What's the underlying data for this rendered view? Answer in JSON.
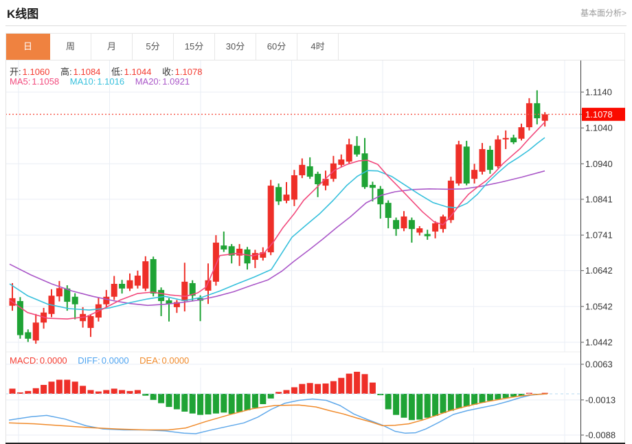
{
  "header": {
    "title": "K线图",
    "link": "基本面分析>"
  },
  "tabs": {
    "items": [
      "日",
      "周",
      "月",
      "5分",
      "15分",
      "30分",
      "60分",
      "4时"
    ],
    "selected_index": 0
  },
  "readout": {
    "ohlc": [
      {
        "label": "开:",
        "value": "1.1060"
      },
      {
        "label": "高:",
        "value": "1.1084"
      },
      {
        "label": "低:",
        "value": "1.1044"
      },
      {
        "label": "收:",
        "value": "1.1078"
      }
    ],
    "ma": [
      {
        "label": "MA5:",
        "value": "1.1058"
      },
      {
        "label": "MA10:",
        "value": "1.1016"
      },
      {
        "label": "MA20:",
        "value": "1.0921"
      }
    ],
    "macd": [
      {
        "label": "MACD:",
        "value": "0.0000"
      },
      {
        "label": "DIFF:",
        "value": "0.0000"
      },
      {
        "label": "DEA:",
        "value": "0.0000"
      }
    ]
  },
  "colors": {
    "up_red": "#ee2f28",
    "down_green": "#1fa335",
    "ma5": "#f2497c",
    "ma10": "#36c0dc",
    "ma20": "#aa57c8",
    "diff_blue": "#5fa8ea",
    "dea_orange": "#f08a2a",
    "ohlc_label": "#333333",
    "ohlc_value": "#f43b30",
    "marker_bg": "#fa0b00",
    "marker_text": "#ffffff",
    "price_dotted": "#f65c4e",
    "zero_dashed": "#b5daf0",
    "grid": "#e9eef5",
    "axis_line": "#3a3a3a",
    "tick": "#555555",
    "axis_text": "#333333",
    "tab_selected_bg": "#ef8240",
    "bottom_border": "#222222"
  },
  "chart_data": {
    "type": "candlestick+macd",
    "title": "K线图",
    "legend": [
      "MA5",
      "MA10",
      "MA20",
      "MACD",
      "DIFF",
      "DEA"
    ],
    "main": {
      "ylim": [
        1.0442,
        1.114
      ],
      "y_ticks": [
        "1.1140",
        "1.1040",
        "1.0940",
        "1.0841",
        "1.0741",
        "1.0642",
        "1.0542",
        "1.0442"
      ],
      "current_price": "1.1078",
      "current_price_value": 1.1078,
      "grid": true,
      "candles_ohlc": [
        [
          1.0544,
          1.0607,
          1.053,
          1.0565
        ],
        [
          1.0557,
          1.0568,
          1.0452,
          1.0462
        ],
        [
          1.047,
          1.0478,
          1.0443,
          1.0452
        ],
        [
          1.0447,
          1.0521,
          1.0438,
          1.0497
        ],
        [
          1.0497,
          1.0538,
          1.048,
          1.0525
        ],
        [
          1.0521,
          1.059,
          1.0512,
          1.0572
        ],
        [
          1.057,
          1.0613,
          1.0556,
          1.0593
        ],
        [
          1.0592,
          1.0601,
          1.053,
          1.0555
        ],
        [
          1.0569,
          1.0579,
          1.0506,
          1.0548
        ],
        [
          1.0501,
          1.054,
          1.0483,
          1.0521
        ],
        [
          1.0482,
          1.0519,
          1.0457,
          1.0515
        ],
        [
          1.0511,
          1.0566,
          1.05,
          1.0548
        ],
        [
          1.0548,
          1.0588,
          1.0536,
          1.0569
        ],
        [
          1.0569,
          1.0627,
          1.056,
          1.0605
        ],
        [
          1.0605,
          1.0616,
          1.0578,
          1.0592
        ],
        [
          1.0592,
          1.0634,
          1.0585,
          1.0615
        ],
        [
          1.06,
          1.0642,
          1.0592,
          1.0628
        ],
        [
          1.0592,
          1.0682,
          1.0585,
          1.0668
        ],
        [
          1.0674,
          1.0681,
          1.057,
          1.0578
        ],
        [
          1.0588,
          1.0595,
          1.0515,
          1.0557
        ],
        [
          1.0559,
          1.0565,
          1.05,
          1.0549
        ],
        [
          1.054,
          1.056,
          1.0524,
          1.0554
        ],
        [
          1.0557,
          1.0664,
          1.0528,
          1.0611
        ],
        [
          1.0607,
          1.0615,
          1.0556,
          1.0572
        ],
        [
          1.0565,
          1.0573,
          1.0501,
          1.0558
        ],
        [
          1.0586,
          1.0662,
          1.0549,
          1.0615
        ],
        [
          1.0611,
          1.0741,
          1.06,
          1.072
        ],
        [
          1.0712,
          1.0751,
          1.0694,
          1.0701
        ],
        [
          1.071,
          1.0716,
          1.0662,
          1.0684
        ],
        [
          1.0684,
          1.0716,
          1.0655,
          1.0703
        ],
        [
          1.0701,
          1.0708,
          1.0645,
          1.0662
        ],
        [
          1.0672,
          1.07,
          1.0649,
          1.0691
        ],
        [
          1.0678,
          1.0707,
          1.067,
          1.0693
        ],
        [
          1.0693,
          1.0895,
          1.0685,
          1.0879
        ],
        [
          1.0875,
          1.0885,
          1.0825,
          1.0835
        ],
        [
          1.0837,
          1.0889,
          1.083,
          1.0854
        ],
        [
          1.084,
          1.0923,
          1.0822,
          1.0908
        ],
        [
          1.0908,
          1.0955,
          1.09,
          1.0937
        ],
        [
          1.0933,
          1.0958,
          1.0898,
          1.0904
        ],
        [
          1.0912,
          1.0918,
          1.0847,
          1.0883
        ],
        [
          1.0879,
          1.0921,
          1.0866,
          1.0898
        ],
        [
          1.0898,
          1.0962,
          1.089,
          1.0941
        ],
        [
          1.0937,
          1.0966,
          1.093,
          1.0952
        ],
        [
          1.0946,
          1.101,
          1.094,
          1.0994
        ],
        [
          1.099,
          1.1017,
          1.096,
          1.0966
        ],
        [
          1.0969,
          1.1012,
          1.087,
          1.0875
        ],
        [
          1.0881,
          1.089,
          1.0835,
          1.0873
        ],
        [
          1.087,
          1.0878,
          1.0787,
          1.0827
        ],
        [
          1.0831,
          1.0838,
          1.076,
          1.0789
        ],
        [
          1.0783,
          1.079,
          1.0739,
          1.0758
        ],
        [
          1.076,
          1.0808,
          1.0752,
          1.0793
        ],
        [
          1.0783,
          1.079,
          1.072,
          1.0758
        ],
        [
          1.0748,
          1.0766,
          1.074,
          1.076
        ],
        [
          1.0744,
          1.0756,
          1.0728,
          1.0738
        ],
        [
          1.0751,
          1.078,
          1.0732,
          1.0774
        ],
        [
          1.0758,
          1.0798,
          1.0748,
          1.0793
        ],
        [
          1.0783,
          1.0904,
          1.0775,
          1.0893
        ],
        [
          1.0885,
          1.1004,
          1.0879,
          1.0994
        ],
        [
          1.0988,
          1.1004,
          1.088,
          1.0885
        ],
        [
          1.0898,
          1.094,
          1.0885,
          1.0923
        ],
        [
          1.0918,
          1.0998,
          1.091,
          1.0981
        ],
        [
          1.0979,
          1.099,
          1.0912,
          1.0923
        ],
        [
          1.0933,
          1.1019,
          1.0928,
          1.1008
        ],
        [
          1.1008,
          1.1033,
          1.0981,
          1.1012
        ],
        [
          1.1013,
          1.1021,
          1.0995,
          1.1
        ],
        [
          1.101,
          1.1052,
          1.1005,
          1.1042
        ],
        [
          1.1042,
          1.1123,
          1.1033,
          1.1109
        ],
        [
          1.1109,
          1.1145,
          1.105,
          1.1067
        ],
        [
          1.106,
          1.1084,
          1.1044,
          1.1078
        ]
      ],
      "ma5_line": [
        [
          14,
          1.056
        ],
        [
          40,
          1.0525
        ],
        [
          70,
          1.0509
        ],
        [
          98,
          1.0507
        ],
        [
          125,
          1.0513
        ],
        [
          150,
          1.0535
        ],
        [
          175,
          1.056
        ],
        [
          200,
          1.0578
        ],
        [
          222,
          1.0582
        ],
        [
          248,
          1.0574
        ],
        [
          270,
          1.057
        ],
        [
          288,
          1.058
        ],
        [
          300,
          1.0596
        ],
        [
          312,
          1.0648
        ],
        [
          320,
          1.0684
        ],
        [
          345,
          1.069
        ],
        [
          368,
          1.0683
        ],
        [
          385,
          1.0692
        ],
        [
          398,
          1.0722
        ],
        [
          412,
          1.0762
        ],
        [
          428,
          1.08
        ],
        [
          442,
          1.0838
        ],
        [
          458,
          1.0868
        ],
        [
          472,
          1.0895
        ],
        [
          487,
          1.0922
        ],
        [
          505,
          1.0938
        ],
        [
          522,
          1.0948
        ],
        [
          535,
          1.095
        ],
        [
          550,
          1.0938
        ],
        [
          565,
          1.0905
        ],
        [
          582,
          1.0872
        ],
        [
          598,
          1.084
        ],
        [
          615,
          1.0806
        ],
        [
          632,
          1.0778
        ],
        [
          645,
          1.077
        ],
        [
          658,
          1.0798
        ],
        [
          670,
          1.0828
        ],
        [
          682,
          1.0855
        ],
        [
          695,
          1.0875
        ],
        [
          708,
          1.0893
        ],
        [
          720,
          1.0915
        ],
        [
          732,
          1.094
        ],
        [
          745,
          1.0962
        ],
        [
          757,
          1.0982
        ],
        [
          770,
          1.101
        ],
        [
          781,
          1.1032
        ],
        [
          793,
          1.1056
        ]
      ],
      "ma10_line": [
        [
          14,
          1.0605
        ],
        [
          40,
          1.0572
        ],
        [
          70,
          1.0548
        ],
        [
          100,
          1.0536
        ],
        [
          130,
          1.0532
        ],
        [
          160,
          1.0538
        ],
        [
          190,
          1.0553
        ],
        [
          215,
          1.0563
        ],
        [
          240,
          1.057
        ],
        [
          268,
          1.0558
        ],
        [
          295,
          1.0568
        ],
        [
          320,
          1.0585
        ],
        [
          345,
          1.0605
        ],
        [
          370,
          1.0624
        ],
        [
          395,
          1.0645
        ],
        [
          410,
          1.069
        ],
        [
          425,
          1.0735
        ],
        [
          445,
          1.0768
        ],
        [
          465,
          1.08
        ],
        [
          485,
          1.0838
        ],
        [
          505,
          1.088
        ],
        [
          520,
          1.0905
        ],
        [
          535,
          1.0921
        ],
        [
          550,
          1.092
        ],
        [
          570,
          1.0905
        ],
        [
          590,
          1.088
        ],
        [
          610,
          1.0855
        ],
        [
          630,
          1.0832
        ],
        [
          650,
          1.082
        ],
        [
          665,
          1.0817
        ],
        [
          680,
          1.083
        ],
        [
          695,
          1.0855
        ],
        [
          710,
          1.0888
        ],
        [
          725,
          1.0915
        ],
        [
          740,
          1.094
        ],
        [
          755,
          1.0958
        ],
        [
          770,
          1.0978
        ],
        [
          782,
          1.0997
        ],
        [
          793,
          1.1013
        ]
      ],
      "ma20_line": [
        [
          14,
          1.066
        ],
        [
          45,
          1.063
        ],
        [
          75,
          1.0605
        ],
        [
          105,
          1.0585
        ],
        [
          135,
          1.057
        ],
        [
          165,
          1.0558
        ],
        [
          190,
          1.055
        ],
        [
          215,
          1.0545
        ],
        [
          240,
          1.0548
        ],
        [
          265,
          1.0553
        ],
        [
          290,
          1.056
        ],
        [
          315,
          1.057
        ],
        [
          340,
          1.0583
        ],
        [
          365,
          1.06
        ],
        [
          390,
          1.0616
        ],
        [
          410,
          1.064
        ],
        [
          428,
          1.0668
        ],
        [
          450,
          1.07
        ],
        [
          470,
          1.073
        ],
        [
          490,
          1.0762
        ],
        [
          510,
          1.0792
        ],
        [
          533,
          1.0831
        ],
        [
          555,
          1.0852
        ],
        [
          575,
          1.0862
        ],
        [
          600,
          1.0868
        ],
        [
          625,
          1.087
        ],
        [
          650,
          1.0869
        ],
        [
          675,
          1.087
        ],
        [
          700,
          1.0877
        ],
        [
          730,
          1.0889
        ],
        [
          760,
          1.0903
        ],
        [
          793,
          1.092
        ]
      ]
    },
    "macd": {
      "ylim": [
        -0.0088,
        0.0063
      ],
      "y_ticks": [
        "0.0063",
        "-0.0013",
        "-0.0088"
      ],
      "y_tick_values": [
        0.0063,
        -0.0013,
        -0.0088
      ],
      "histogram": [
        0.0011,
        0.0003,
        0.0006,
        0.0012,
        0.0019,
        0.0026,
        0.003,
        0.003,
        0.0026,
        0.0017,
        0.0008,
        0.0005,
        0.0008,
        0.0011,
        0.0008,
        0.0006,
        0.0008,
        -0.0004,
        -0.0013,
        -0.002,
        -0.0028,
        -0.0033,
        -0.0038,
        -0.0042,
        -0.0045,
        -0.0044,
        -0.0042,
        -0.004,
        -0.0043,
        -0.0039,
        -0.0035,
        -0.003,
        -0.0022,
        -0.001,
        0.0004,
        0.0008,
        0.0014,
        0.0021,
        0.0023,
        0.0021,
        0.0022,
        0.0027,
        0.0034,
        0.0043,
        0.0047,
        0.0042,
        0.0024,
        -0.0003,
        -0.0033,
        -0.0045,
        -0.0051,
        -0.0056,
        -0.0055,
        -0.0051,
        -0.0047,
        -0.0041,
        -0.0036,
        -0.0031,
        -0.0027,
        -0.0023,
        -0.0019,
        -0.0015,
        -0.0012,
        -0.0009,
        -0.0006,
        -0.0004,
        0.0002,
        -0.0002,
        0.0002
      ],
      "diff_line": [
        [
          13,
          -0.0056
        ],
        [
          45,
          -0.0049
        ],
        [
          68,
          -0.0046
        ],
        [
          95,
          -0.0054
        ],
        [
          125,
          -0.0068
        ],
        [
          150,
          -0.0075
        ],
        [
          180,
          -0.0077
        ],
        [
          210,
          -0.0077
        ],
        [
          240,
          -0.0079
        ],
        [
          268,
          -0.0084
        ],
        [
          285,
          -0.0085
        ],
        [
          305,
          -0.0078
        ],
        [
          330,
          -0.007
        ],
        [
          355,
          -0.0062
        ],
        [
          375,
          -0.005
        ],
        [
          395,
          -0.0033
        ],
        [
          415,
          -0.002
        ],
        [
          435,
          -0.0014
        ],
        [
          455,
          -0.0011
        ],
        [
          475,
          -0.0014
        ],
        [
          495,
          -0.0025
        ],
        [
          515,
          -0.0043
        ],
        [
          535,
          -0.0055
        ],
        [
          557,
          -0.0067
        ],
        [
          575,
          -0.008
        ],
        [
          590,
          -0.0084
        ],
        [
          605,
          -0.0083
        ],
        [
          620,
          -0.0075
        ],
        [
          640,
          -0.006
        ],
        [
          660,
          -0.0044
        ],
        [
          680,
          -0.0036
        ],
        [
          700,
          -0.003
        ],
        [
          720,
          -0.0024
        ],
        [
          740,
          -0.0016
        ],
        [
          758,
          -0.0008
        ],
        [
          772,
          -0.0003
        ],
        [
          785,
          -0.0001
        ],
        [
          797,
          0.0
        ]
      ],
      "dea_line": [
        [
          13,
          -0.0062
        ],
        [
          50,
          -0.0064
        ],
        [
          90,
          -0.0068
        ],
        [
          130,
          -0.0072
        ],
        [
          170,
          -0.0075
        ],
        [
          210,
          -0.0077
        ],
        [
          245,
          -0.0077
        ],
        [
          270,
          -0.0073
        ],
        [
          300,
          -0.0059
        ],
        [
          333,
          -0.0045
        ],
        [
          367,
          -0.0032
        ],
        [
          400,
          -0.0025
        ],
        [
          435,
          -0.0024
        ],
        [
          460,
          -0.0028
        ],
        [
          480,
          -0.0036
        ],
        [
          500,
          -0.0043
        ],
        [
          520,
          -0.0052
        ],
        [
          540,
          -0.006
        ],
        [
          557,
          -0.0068
        ],
        [
          575,
          -0.0067
        ],
        [
          595,
          -0.0064
        ],
        [
          615,
          -0.0056
        ],
        [
          635,
          -0.0046
        ],
        [
          655,
          -0.0036
        ],
        [
          675,
          -0.0028
        ],
        [
          695,
          -0.0021
        ],
        [
          715,
          -0.0015
        ],
        [
          735,
          -0.001
        ],
        [
          755,
          -0.0005
        ],
        [
          775,
          -0.0002
        ],
        [
          797,
          0.0
        ]
      ]
    }
  }
}
